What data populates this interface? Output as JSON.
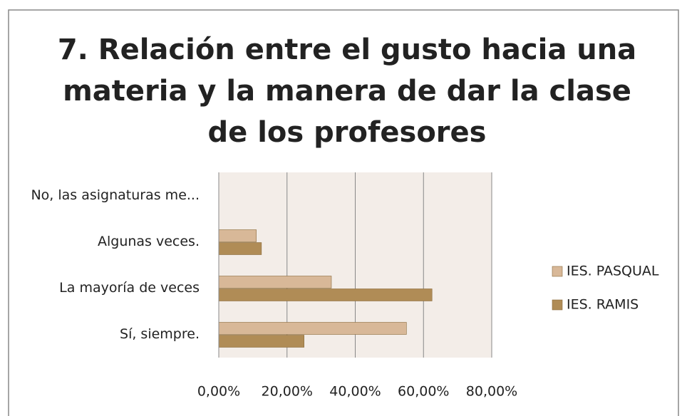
{
  "chart_data": {
    "type": "bar",
    "orientation": "horizontal",
    "title": [
      "7. Relación entre el gusto hacia una",
      "materia y la manera de dar la clase",
      "de los profesores"
    ],
    "categories": [
      "No, las asignaturas me...",
      "Algunas veces.",
      "La mayoría de veces",
      "Sí, siempre."
    ],
    "series": [
      {
        "name": "IES. PASQUAL",
        "color": "#d8b898",
        "values": [
          0,
          11,
          33,
          55
        ]
      },
      {
        "name": "IES. RAMIS",
        "color": "#b08c56",
        "values": [
          0,
          12.5,
          62.5,
          25
        ]
      }
    ],
    "xlim": [
      0,
      80
    ],
    "xticks": [
      {
        "value": 0,
        "label": "0,00%"
      },
      {
        "value": 20,
        "label": "20,00%"
      },
      {
        "value": 40,
        "label": "40,00%"
      },
      {
        "value": 60,
        "label": "60,00%"
      },
      {
        "value": 80,
        "label": "80,00%"
      }
    ],
    "grid": true,
    "legend": "right"
  }
}
